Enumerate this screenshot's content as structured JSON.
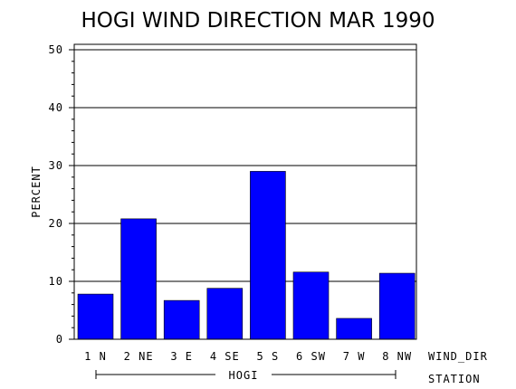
{
  "chart_data": {
    "type": "bar",
    "title": "HOGI WIND DIRECTION MAR 1990",
    "ylabel": "PERCENT",
    "xlabel": "WIND_DIR",
    "group_label": "HOGI",
    "group_axis_label": "STATION",
    "categories": [
      "1 N",
      "2 NE",
      "3 E",
      "4 SE",
      "5 S",
      "6 SW",
      "7 W",
      "8 NW"
    ],
    "values": [
      7.8,
      20.8,
      6.7,
      8.8,
      29.0,
      11.6,
      3.6,
      11.4
    ],
    "ylim": [
      0,
      50
    ],
    "yticks": [
      "0",
      "10",
      "20",
      "30",
      "40",
      "50"
    ],
    "grid": true,
    "bar_color": "#0000ff"
  }
}
